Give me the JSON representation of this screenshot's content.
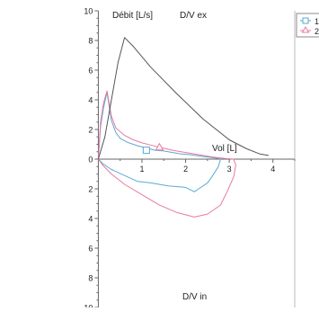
{
  "chart_data": {
    "type": "line",
    "ylabel": "Débit [L/s]",
    "xlabel": "Vol [L]",
    "top_label": "D/V ex",
    "bottom_label": "D/V in",
    "xlim": [
      -0.4,
      4.5
    ],
    "ylim": [
      -10,
      10
    ],
    "x_ticks": [
      1,
      2,
      3,
      4
    ],
    "y_ticks_upper": [
      2,
      4,
      6,
      8,
      10
    ],
    "y_ticks_lower": [
      2,
      4,
      6,
      8,
      10
    ],
    "y_tick_zero": "0",
    "grid": false,
    "legend_position": "top-right",
    "series": [
      {
        "name": "1",
        "color": "#5aa9d6",
        "marker": "square",
        "marker_at": [
          1.1,
          0.6
        ],
        "x": [
          0,
          0.05,
          0.12,
          0.2,
          0.3,
          0.4,
          0.5,
          0.7,
          0.9,
          1.1,
          1.3,
          1.5,
          1.7,
          1.9,
          2.1,
          2.35,
          2.6,
          2.75,
          2.8,
          2.75,
          2.6,
          2.5,
          2.3,
          2.2,
          2.0,
          1.6,
          1.2,
          0.9,
          0.6,
          0.3,
          0.1,
          0
        ],
        "y": [
          0,
          2.2,
          3.5,
          4.5,
          2.6,
          1.8,
          1.4,
          1.1,
          0.9,
          0.75,
          0.6,
          0.55,
          0.45,
          0.35,
          0.3,
          0.2,
          0.1,
          0.05,
          0,
          -0.5,
          -1.2,
          -1.6,
          -2.0,
          -2.2,
          -1.9,
          -1.8,
          -1.6,
          -1.5,
          -1.1,
          -0.7,
          -0.3,
          0
        ]
      },
      {
        "name": "2",
        "color": "#e87aa0",
        "marker": "triangle",
        "marker_at": [
          1.4,
          0.8
        ],
        "x": [
          0,
          0.05,
          0.12,
          0.2,
          0.3,
          0.4,
          0.6,
          0.8,
          1.0,
          1.2,
          1.4,
          1.7,
          2.0,
          2.3,
          2.6,
          2.9,
          3.1,
          3.15,
          3.1,
          2.95,
          2.8,
          2.5,
          2.2,
          1.8,
          1.4,
          1.0,
          0.6,
          0.3,
          0.1,
          0
        ],
        "y": [
          0,
          2.5,
          3.8,
          4.6,
          2.9,
          2.1,
          1.6,
          1.3,
          1.1,
          0.95,
          0.8,
          0.6,
          0.45,
          0.3,
          0.15,
          0.05,
          0,
          -0.4,
          -1.2,
          -2.2,
          -3.1,
          -3.7,
          -3.9,
          -3.6,
          -3.1,
          -2.4,
          -1.7,
          -1.0,
          -0.4,
          0
        ]
      },
      {
        "name": "",
        "color": "#555555",
        "marker": "none",
        "x": [
          0,
          0.15,
          0.3,
          0.45,
          0.6,
          0.8,
          1.2,
          1.8,
          2.4,
          3.0,
          3.4,
          3.7,
          3.9
        ],
        "y": [
          0,
          1.5,
          4.0,
          6.5,
          8.2,
          7.6,
          6.2,
          4.4,
          2.7,
          1.3,
          0.7,
          0.35,
          0.25
        ]
      }
    ]
  }
}
